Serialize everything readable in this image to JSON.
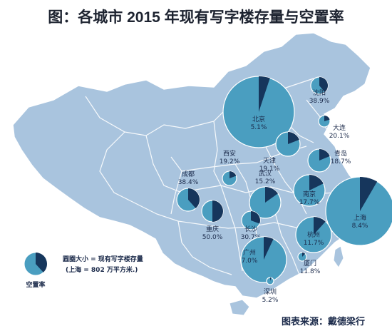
{
  "title": "图：各城市 2015 年现有写字楼存量与空置率",
  "legend": {
    "label": "空置率",
    "note_line1": "圆圈大小 = 现有写字楼存量",
    "note_line2": "(上海 = 802 万平方米.)"
  },
  "source": "图表来源：戴德梁行",
  "colors": {
    "map_fill": "#a9c4de",
    "map_border": "#ffffff",
    "pie_main": "#4a9ec0",
    "pie_vacant": "#16365c"
  },
  "cities": [
    {
      "name": "北京",
      "vacancy_label": "5.1%",
      "vacancy": 5.1
    },
    {
      "name": "沈阳",
      "vacancy_label": "38.9%",
      "vacancy": 38.9
    },
    {
      "name": "大连",
      "vacancy_label": "20.1%",
      "vacancy": 20.1
    },
    {
      "name": "天津",
      "vacancy_label": "19.1%",
      "vacancy": 19.1
    },
    {
      "name": "青岛",
      "vacancy_label": "18.7%",
      "vacancy": 18.7
    },
    {
      "name": "西安",
      "vacancy_label": "19.2%",
      "vacancy": 19.2
    },
    {
      "name": "成都",
      "vacancy_label": "38.4%",
      "vacancy": 38.4
    },
    {
      "name": "武汉",
      "vacancy_label": "15.2%",
      "vacancy": 15.2
    },
    {
      "name": "南京",
      "vacancy_label": "17.7%",
      "vacancy": 17.7
    },
    {
      "name": "上海",
      "vacancy_label": "8.4%",
      "vacancy": 8.4
    },
    {
      "name": "重庆",
      "vacancy_label": "50.0%",
      "vacancy": 50.0
    },
    {
      "name": "长沙",
      "vacancy_label": "30.7%",
      "vacancy": 30.7
    },
    {
      "name": "杭州",
      "vacancy_label": "11.7%",
      "vacancy": 11.7
    },
    {
      "name": "广州",
      "vacancy_label": "7.0%",
      "vacancy": 7.0
    },
    {
      "name": "厦门",
      "vacancy_label": "11.8%",
      "vacancy": 11.8
    },
    {
      "name": "深圳",
      "vacancy_label": "5.2%",
      "vacancy": 5.2
    }
  ]
}
